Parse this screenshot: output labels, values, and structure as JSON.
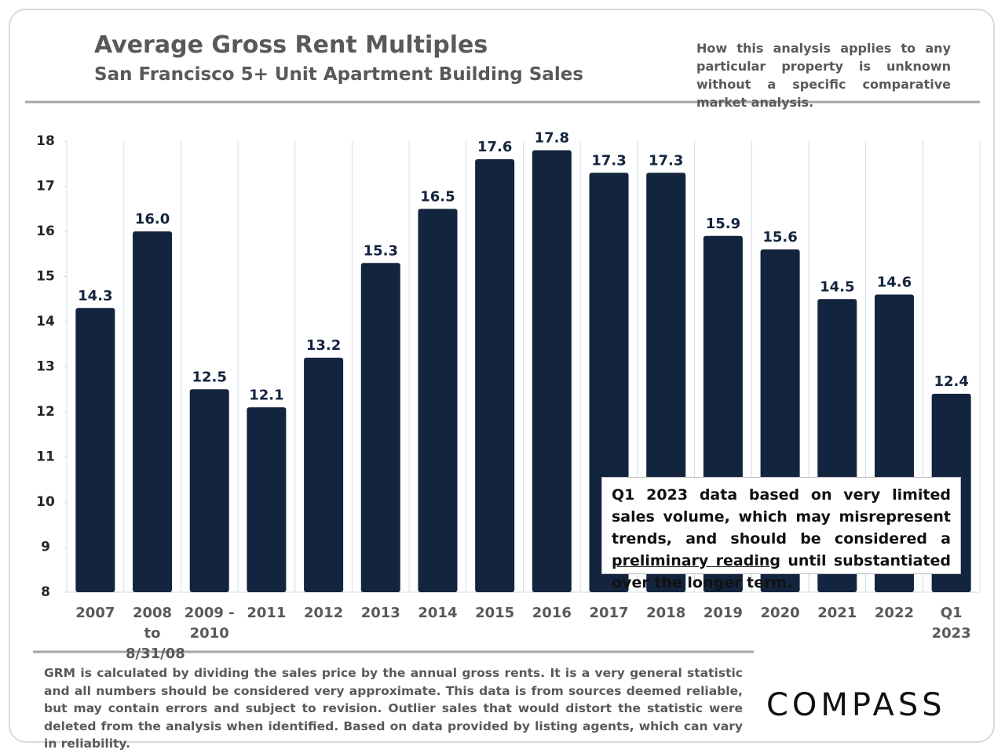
{
  "chart_data": {
    "type": "bar",
    "title": "Average Gross Rent Multiples",
    "subtitle": "San Francisco 5+ Unit Apartment Building Sales",
    "note": "How this analysis applies to any particular property is unknown without a specific comparative market analysis.",
    "categories": [
      "2007",
      "2008 to 8/31/08",
      "2009 - 2010",
      "2011",
      "2012",
      "2013",
      "2014",
      "2015",
      "2016",
      "2017",
      "2018",
      "2019",
      "2020",
      "2021",
      "2022",
      "Q1 2023"
    ],
    "values": [
      14.3,
      16.0,
      12.5,
      12.1,
      13.2,
      15.3,
      16.5,
      17.6,
      17.8,
      17.3,
      17.3,
      15.9,
      15.6,
      14.5,
      14.6,
      12.4
    ],
    "value_labels": [
      "14.3",
      "16.0",
      "12.5",
      "12.1",
      "13.2",
      "15.3",
      "16.5",
      "17.6",
      "17.8",
      "17.3",
      "17.3",
      "15.9",
      "15.6",
      "14.5",
      "14.6",
      "12.4"
    ],
    "color": "#13243f",
    "ylim": [
      8,
      18
    ],
    "yticks": [
      8,
      9,
      10,
      11,
      12,
      13,
      14,
      15,
      16,
      17,
      18
    ],
    "annotation": [
      "Q1 2023 data based on very limited sales volume, which may misrepresent trends, and should be considered a",
      "preliminary reading",
      "until substantiated over the longer term."
    ],
    "footnote": "GRM is calculated by dividing the sales price by the annual gross rents. It is a very general statistic and all numbers should be considered very approximate. This data is from sources deemed reliable, but may contain errors and subject to revision. Outlier sales that would distort the statistic were deleted from the analysis when identified. Based on data provided by listing agents, which can vary in reliability.",
    "brand": "COMPASS"
  }
}
